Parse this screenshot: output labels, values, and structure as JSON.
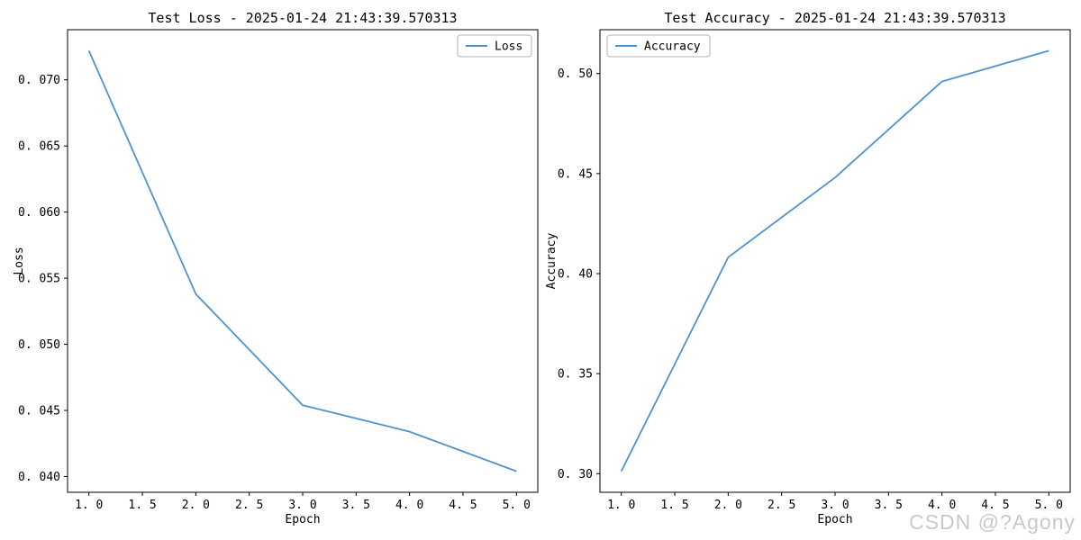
{
  "chart_data": [
    {
      "type": "line",
      "title": "Test Loss - 2025-01-24 21:43:39.570313",
      "xlabel": "Epoch",
      "ylabel": "Loss",
      "legend": {
        "label": "Loss",
        "position": "top-right"
      },
      "line_color": "#4e93d0",
      "x": [
        1,
        2,
        3,
        4,
        5
      ],
      "series": [
        {
          "name": "Loss",
          "values": [
            0.0722,
            0.0538,
            0.0454,
            0.0434,
            0.0404
          ]
        }
      ],
      "xlim": [
        0.8,
        5.2
      ],
      "ylim": [
        0.03881,
        0.07379
      ],
      "grid": false,
      "xticks": {
        "values": [
          1.0,
          1.5,
          2.0,
          2.5,
          3.0,
          3.5,
          4.0,
          4.5,
          5.0
        ],
        "labels": [
          "1. 0",
          "1. 5",
          "2. 0",
          "2. 5",
          "3. 0",
          "3. 5",
          "4. 0",
          "4. 5",
          "5. 0"
        ]
      },
      "yticks": {
        "values": [
          0.04,
          0.045,
          0.05,
          0.055,
          0.06,
          0.065,
          0.07
        ],
        "labels": [
          "0. 040",
          "0. 045",
          "0. 050",
          "0. 055",
          "0. 060",
          "0. 065",
          "0. 070"
        ]
      }
    },
    {
      "type": "line",
      "title": "Test Accuracy - 2025-01-24 21:43:39.570313",
      "xlabel": "Epoch",
      "ylabel": "Accuracy",
      "legend": {
        "label": "Accuracy",
        "position": "top-left"
      },
      "line_color": "#4e93d0",
      "x": [
        1,
        2,
        3,
        4,
        5
      ],
      "series": [
        {
          "name": "Accuracy",
          "values": [
            0.3012,
            0.4082,
            0.448,
            0.496,
            0.5114
          ]
        }
      ],
      "xlim": [
        0.8,
        5.2
      ],
      "ylim": [
        0.29069,
        0.52191
      ],
      "grid": false,
      "xticks": {
        "values": [
          1.0,
          1.5,
          2.0,
          2.5,
          3.0,
          3.5,
          4.0,
          4.5,
          5.0
        ],
        "labels": [
          "1. 0",
          "1. 5",
          "2. 0",
          "2. 5",
          "3. 0",
          "3. 5",
          "4. 0",
          "4. 5",
          "5. 0"
        ]
      },
      "yticks": {
        "values": [
          0.3,
          0.35,
          0.4,
          0.45,
          0.5
        ],
        "labels": [
          "0. 30",
          "0. 35",
          "0. 40",
          "0. 45",
          "0. 50"
        ]
      }
    }
  ],
  "watermark": {
    "text": "CSDN @?Agony"
  },
  "colors": {
    "line": "#4e93d0",
    "axis": "#000000",
    "legend_border": "#b3b3b3",
    "watermark": "#c9c9c9"
  }
}
